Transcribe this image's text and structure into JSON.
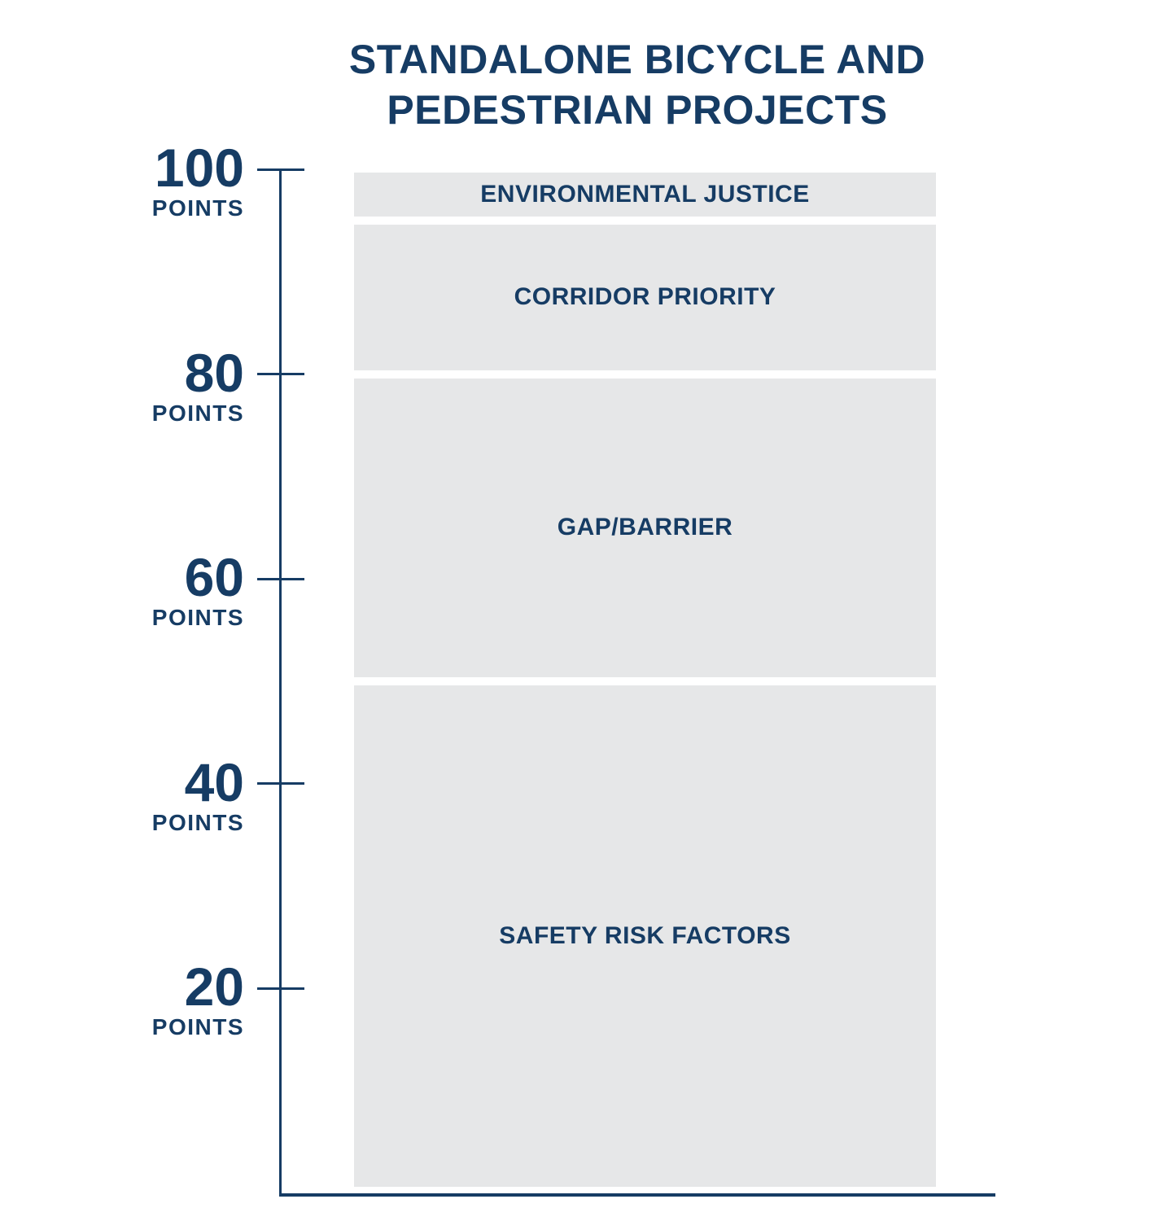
{
  "chart_data": {
    "type": "bar",
    "variant": "single-stacked-column",
    "title": "STANDALONE BICYCLE AND PEDESTRIAN PROJECTS",
    "xlabel": "",
    "ylabel": "",
    "ylim": [
      0,
      100
    ],
    "grid": false,
    "legend": false,
    "yticks": [
      {
        "value": 100,
        "label": "100",
        "unit": "POINTS"
      },
      {
        "value": 80,
        "label": "80",
        "unit": "POINTS"
      },
      {
        "value": 60,
        "label": "60",
        "unit": "POINTS"
      },
      {
        "value": 40,
        "label": "40",
        "unit": "POINTS"
      },
      {
        "value": 20,
        "label": "20",
        "unit": "POINTS"
      }
    ],
    "segments": [
      {
        "label": "ENVIRONMENTAL JUSTICE",
        "from": 95,
        "to": 100,
        "points": 5
      },
      {
        "label": "CORRIDOR PRIORITY",
        "from": 80,
        "to": 95,
        "points": 15
      },
      {
        "label": "GAP/BARRIER",
        "from": 50,
        "to": 80,
        "points": 30
      },
      {
        "label": "SAFETY RISK FACTORS",
        "from": 0,
        "to": 50,
        "points": 50
      }
    ],
    "colors": {
      "navy": "#163c64",
      "bar_fill": "#e6e7e8",
      "background": "#ffffff"
    }
  }
}
